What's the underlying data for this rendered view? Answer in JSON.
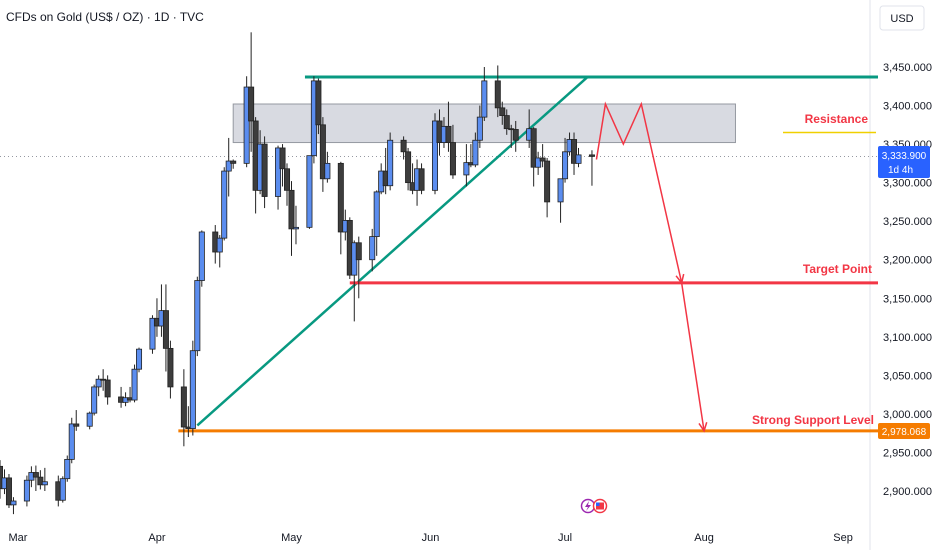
{
  "header": {
    "title": "CFDs on Gold (US$ / OZ) · 1D · TVC"
  },
  "axis": {
    "currency": "USD",
    "y_min": 2880,
    "y_max": 3500,
    "y_ticks": [
      "3,450.000",
      "3,400.000",
      "3,350.000",
      "3,300.000",
      "3,250.000",
      "3,200.000",
      "3,150.000",
      "3,100.000",
      "3,050.000",
      "3,000.000",
      "2,950.000",
      "2,900.000"
    ],
    "y_tick_values": [
      3450,
      3400,
      3350,
      3300,
      3250,
      3200,
      3150,
      3100,
      3050,
      3000,
      2950,
      2900
    ],
    "x_ticks": [
      "Mar",
      "Apr",
      "May",
      "Jun",
      "Jul",
      "Aug",
      "Sep"
    ],
    "x_tick_dates": [
      "2025-03-01",
      "2025-04-01",
      "2025-05-01",
      "2025-06-01",
      "2025-07-01",
      "2025-08-01",
      "2025-09-01"
    ],
    "x_range": [
      "2025-02-25",
      "2025-09-07"
    ]
  },
  "price_tag": {
    "price": "3,333.900",
    "countdown": "1d 4h",
    "value": 3333.9,
    "color": "#2962ff"
  },
  "support_tag": {
    "price": "2,978.068",
    "value": 2978.068,
    "color": "#f57c00"
  },
  "annotations": {
    "resistance": {
      "label": "Resistance",
      "color": "#f23645",
      "zone_top": 3402,
      "zone_bottom": 3352,
      "zone_start": "2025-04-18",
      "zone_end": "2025-08-08",
      "marker_value": 3365,
      "marker_color": "#f0d000"
    },
    "target": {
      "label": "Target Point",
      "color": "#f23645",
      "value": 3170,
      "start": "2025-05-14"
    },
    "support": {
      "label": "Strong Support Level",
      "color": "#f23645",
      "line_color": "#f57c00",
      "value": 2978,
      "start": "2025-04-08"
    },
    "top_line": {
      "value": 3437,
      "start": "2025-05-04",
      "color": "#089981"
    },
    "trendline": {
      "from": [
        "2025-04-10",
        2985
      ],
      "to": [
        "2025-07-06",
        3437
      ],
      "color": "#089981"
    },
    "projection": {
      "color": "#f23645",
      "points": [
        [
          "2025-07-08",
          3330
        ],
        [
          "2025-07-10",
          3402
        ],
        [
          "2025-07-14",
          3350
        ],
        [
          "2025-07-18",
          3402
        ],
        [
          "2025-07-27",
          3170
        ],
        [
          "2025-08-01",
          2978
        ]
      ]
    }
  },
  "colors": {
    "up": "#5b8def",
    "down": "#3d3d3d",
    "grid": "#f0f3fa"
  },
  "chart_data": {
    "type": "candlestick",
    "title": "CFDs on Gold (US$ / OZ) · 1D · TVC",
    "ylim": [
      2880,
      3500
    ],
    "y_scale": "linear",
    "grid": false,
    "candles": [
      [
        "2025-02-25",
        2932,
        2940,
        2890,
        2903
      ],
      [
        "2025-02-26",
        2903,
        2928,
        2896,
        2917
      ],
      [
        "2025-02-27",
        2917,
        2922,
        2878,
        2882
      ],
      [
        "2025-02-28",
        2882,
        2892,
        2870,
        2887
      ],
      [
        "2025-03-03",
        2887,
        2920,
        2880,
        2914
      ],
      [
        "2025-03-04",
        2914,
        2932,
        2905,
        2924
      ],
      [
        "2025-03-05",
        2924,
        2933,
        2900,
        2918
      ],
      [
        "2025-03-06",
        2918,
        2927,
        2902,
        2908
      ],
      [
        "2025-03-07",
        2908,
        2930,
        2900,
        2912
      ],
      [
        "2025-03-10",
        2912,
        2920,
        2880,
        2888
      ],
      [
        "2025-03-11",
        2888,
        2919,
        2885,
        2916
      ],
      [
        "2025-03-12",
        2916,
        2946,
        2912,
        2941
      ],
      [
        "2025-03-13",
        2941,
        2995,
        2936,
        2987
      ],
      [
        "2025-03-14",
        2987,
        3005,
        2978,
        2984
      ],
      [
        "2025-03-17",
        2984,
        3003,
        2980,
        3001
      ],
      [
        "2025-03-18",
        3001,
        3038,
        2998,
        3035
      ],
      [
        "2025-03-19",
        3035,
        3050,
        3023,
        3045
      ],
      [
        "2025-03-20",
        3045,
        3058,
        3030,
        3044
      ],
      [
        "2025-03-21",
        3044,
        3050,
        3012,
        3022
      ],
      [
        "2025-03-24",
        3022,
        3035,
        3008,
        3015
      ],
      [
        "2025-03-25",
        3015,
        3028,
        3010,
        3021
      ],
      [
        "2025-03-26",
        3021,
        3035,
        3015,
        3018
      ],
      [
        "2025-03-27",
        3018,
        3064,
        3015,
        3058
      ],
      [
        "2025-03-28",
        3058,
        3086,
        3054,
        3084
      ],
      [
        "2025-03-31",
        3084,
        3128,
        3078,
        3124
      ],
      [
        "2025-04-01",
        3124,
        3150,
        3100,
        3114
      ],
      [
        "2025-04-02",
        3114,
        3168,
        3100,
        3134
      ],
      [
        "2025-04-03",
        3134,
        3168,
        3055,
        3085
      ],
      [
        "2025-04-04",
        3085,
        3095,
        3020,
        3035
      ],
      [
        "2025-04-07",
        3035,
        3058,
        2958,
        2983
      ],
      [
        "2025-04-08",
        2983,
        3010,
        2970,
        2981
      ],
      [
        "2025-04-09",
        2981,
        3095,
        2972,
        3082
      ],
      [
        "2025-04-10",
        3082,
        3178,
        3075,
        3173
      ],
      [
        "2025-04-11",
        3173,
        3238,
        3165,
        3236
      ],
      [
        "2025-04-14",
        3236,
        3245,
        3195,
        3210
      ],
      [
        "2025-04-15",
        3210,
        3232,
        3190,
        3228
      ],
      [
        "2025-04-16",
        3228,
        3320,
        3225,
        3315
      ],
      [
        "2025-04-17",
        3315,
        3358,
        3282,
        3328
      ],
      [
        "2025-04-18",
        3328,
        3330,
        3318,
        3325
      ],
      [
        "2025-04-21",
        3325,
        3438,
        3320,
        3424
      ],
      [
        "2025-04-22",
        3424,
        3495,
        3340,
        3380
      ],
      [
        "2025-04-23",
        3380,
        3385,
        3260,
        3290
      ],
      [
        "2025-04-24",
        3290,
        3368,
        3285,
        3350
      ],
      [
        "2025-04-25",
        3350,
        3360,
        3267,
        3282
      ],
      [
        "2025-04-28",
        3282,
        3348,
        3265,
        3345
      ],
      [
        "2025-04-29",
        3345,
        3350,
        3295,
        3318
      ],
      [
        "2025-04-30",
        3318,
        3325,
        3270,
        3290
      ],
      [
        "2025-05-01",
        3290,
        3302,
        3205,
        3240
      ],
      [
        "2025-05-02",
        3240,
        3270,
        3220,
        3242
      ],
      [
        "2025-05-05",
        3242,
        3335,
        3240,
        3335
      ],
      [
        "2025-05-06",
        3335,
        3438,
        3325,
        3432
      ],
      [
        "2025-05-07",
        3432,
        3435,
        3363,
        3375
      ],
      [
        "2025-05-08",
        3375,
        3385,
        3288,
        3305
      ],
      [
        "2025-05-09",
        3305,
        3340,
        3300,
        3325
      ],
      [
        "2025-05-12",
        3325,
        3327,
        3207,
        3236
      ],
      [
        "2025-05-13",
        3236,
        3265,
        3225,
        3251
      ],
      [
        "2025-05-14",
        3251,
        3255,
        3175,
        3180
      ],
      [
        "2025-05-15",
        3180,
        3225,
        3120,
        3222
      ],
      [
        "2025-05-16",
        3222,
        3230,
        3150,
        3200
      ],
      [
        "2025-05-19",
        3200,
        3240,
        3185,
        3230
      ],
      [
        "2025-05-20",
        3230,
        3290,
        3205,
        3288
      ],
      [
        "2025-05-21",
        3288,
        3325,
        3285,
        3315
      ],
      [
        "2025-05-22",
        3315,
        3345,
        3285,
        3296
      ],
      [
        "2025-05-23",
        3296,
        3365,
        3290,
        3355
      ],
      [
        "2025-05-26",
        3355,
        3360,
        3330,
        3340
      ],
      [
        "2025-05-27",
        3340,
        3345,
        3290,
        3300
      ],
      [
        "2025-05-28",
        3300,
        3325,
        3285,
        3290
      ],
      [
        "2025-05-29",
        3290,
        3330,
        3270,
        3318
      ],
      [
        "2025-05-30",
        3318,
        3325,
        3285,
        3290
      ],
      [
        "2025-06-02",
        3290,
        3390,
        3285,
        3380
      ],
      [
        "2025-06-03",
        3380,
        3395,
        3335,
        3352
      ],
      [
        "2025-06-04",
        3352,
        3385,
        3345,
        3373
      ],
      [
        "2025-06-05",
        3373,
        3405,
        3340,
        3352
      ],
      [
        "2025-06-06",
        3352,
        3375,
        3305,
        3310
      ],
      [
        "2025-06-09",
        3310,
        3350,
        3295,
        3326
      ],
      [
        "2025-06-10",
        3326,
        3350,
        3320,
        3323
      ],
      [
        "2025-06-11",
        3323,
        3365,
        3320,
        3355
      ],
      [
        "2025-06-12",
        3355,
        3400,
        3345,
        3385
      ],
      [
        "2025-06-13",
        3385,
        3450,
        3380,
        3432
      ],
      [
        "2025-06-16",
        3432,
        3452,
        3385,
        3397
      ],
      [
        "2025-06-17",
        3397,
        3405,
        3375,
        3387
      ],
      [
        "2025-06-18",
        3387,
        3395,
        3362,
        3370
      ],
      [
        "2025-06-19",
        3370,
        3375,
        3345,
        3369
      ],
      [
        "2025-06-20",
        3369,
        3380,
        3340,
        3355
      ],
      [
        "2025-06-23",
        3355,
        3395,
        3345,
        3370
      ],
      [
        "2025-06-24",
        3370,
        3372,
        3295,
        3320
      ],
      [
        "2025-06-25",
        3320,
        3340,
        3310,
        3332
      ],
      [
        "2025-06-26",
        3332,
        3350,
        3320,
        3328
      ],
      [
        "2025-06-27",
        3328,
        3332,
        3255,
        3275
      ],
      [
        "2025-06-30",
        3275,
        3305,
        3248,
        3305
      ],
      [
        "2025-07-01",
        3305,
        3358,
        3300,
        3340
      ],
      [
        "2025-07-02",
        3340,
        3365,
        3335,
        3356
      ],
      [
        "2025-07-03",
        3356,
        3365,
        3310,
        3325
      ],
      [
        "2025-07-04",
        3325,
        3345,
        3320,
        3336
      ],
      [
        "2025-07-07",
        3336,
        3342,
        3296,
        3334
      ]
    ]
  }
}
